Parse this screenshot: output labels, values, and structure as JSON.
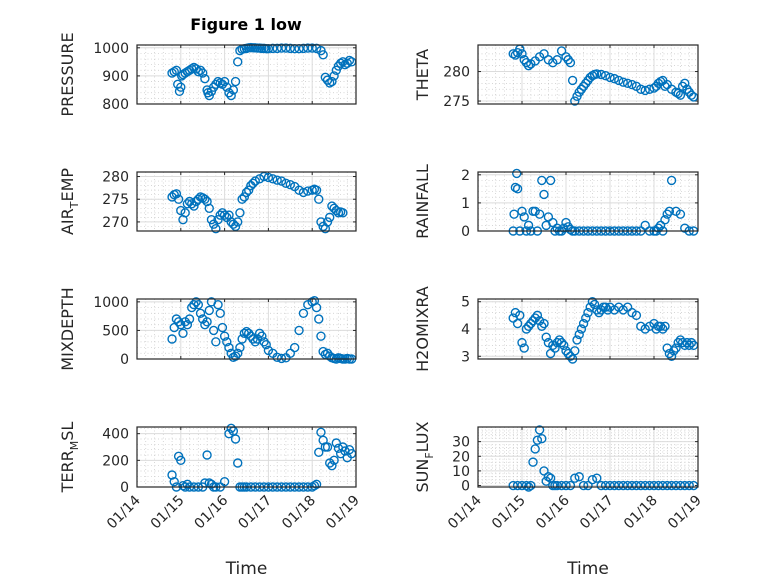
{
  "figure": {
    "title": "Figure 1 low",
    "marker_color": "#0072bd",
    "x_tick_labels": [
      "01/14",
      "01/15",
      "01/16",
      "01/17",
      "01/18",
      "01/19"
    ],
    "x_label": "Time"
  },
  "chart_data": [
    {
      "type": "scatter",
      "title": "Figure 1 low",
      "ylabel": "PRESSURE",
      "ylabel_sub": null,
      "xlabel": "",
      "xlim": [
        0,
        5
      ],
      "ylim": [
        800,
        1010
      ],
      "yticks": [
        800,
        900,
        1000
      ],
      "grid": true,
      "x": [
        0.8,
        0.85,
        0.9,
        0.93,
        0.97,
        1.0,
        1.02,
        1.05,
        1.1,
        1.15,
        1.2,
        1.25,
        1.3,
        1.35,
        1.4,
        1.45,
        1.5,
        1.55,
        1.6,
        1.62,
        1.65,
        1.7,
        1.75,
        1.8,
        1.85,
        1.9,
        1.95,
        2.0,
        2.05,
        2.1,
        2.15,
        2.2,
        2.25,
        2.3,
        2.35,
        2.4,
        2.45,
        2.5,
        2.55,
        2.6,
        2.65,
        2.7,
        2.75,
        2.8,
        2.85,
        2.9,
        2.95,
        3.0,
        3.1,
        3.2,
        3.3,
        3.4,
        3.5,
        3.6,
        3.7,
        3.8,
        3.9,
        4.0,
        4.1,
        4.2,
        4.25,
        4.3,
        4.35,
        4.4,
        4.45,
        4.5,
        4.55,
        4.6,
        4.65,
        4.7,
        4.75,
        4.8,
        4.85,
        4.9
      ],
      "y": [
        910,
        915,
        920,
        870,
        845,
        860,
        900,
        905,
        910,
        915,
        920,
        925,
        930,
        925,
        915,
        920,
        910,
        890,
        850,
        840,
        830,
        845,
        860,
        870,
        880,
        875,
        870,
        880,
        860,
        840,
        830,
        850,
        880,
        950,
        990,
        995,
        997,
        998,
        1000,
        1001,
        1000,
        1000,
        999,
        999,
        998,
        998,
        997,
        997,
        998,
        998,
        999,
        999,
        998,
        997,
        997,
        998,
        999,
        999,
        998,
        990,
        975,
        895,
        885,
        875,
        880,
        900,
        920,
        935,
        945,
        950,
        940,
        945,
        955,
        950
      ]
    },
    {
      "type": "scatter",
      "ylabel": "THETA",
      "ylabel_sub": null,
      "xlabel": "",
      "xlim": [
        0,
        5
      ],
      "ylim": [
        274.5,
        284.5
      ],
      "yticks": [
        275,
        280
      ],
      "grid": true,
      "x": [
        0.8,
        0.85,
        0.9,
        0.95,
        1.0,
        1.05,
        1.1,
        1.15,
        1.2,
        1.3,
        1.4,
        1.5,
        1.6,
        1.7,
        1.8,
        1.9,
        2.0,
        2.05,
        2.1,
        2.15,
        2.2,
        2.25,
        2.3,
        2.35,
        2.4,
        2.45,
        2.5,
        2.55,
        2.6,
        2.65,
        2.7,
        2.8,
        2.9,
        3.0,
        3.1,
        3.2,
        3.3,
        3.4,
        3.5,
        3.6,
        3.7,
        3.8,
        3.9,
        4.0,
        4.05,
        4.1,
        4.15,
        4.2,
        4.25,
        4.3,
        4.4,
        4.5,
        4.55,
        4.6,
        4.65,
        4.7,
        4.75,
        4.8,
        4.85,
        4.9
      ],
      "y": [
        283,
        282.8,
        283.2,
        283.8,
        283,
        282,
        281.5,
        281,
        281.3,
        281.8,
        282.5,
        283,
        282,
        281.5,
        282,
        283.5,
        282.5,
        282,
        281.5,
        278.5,
        275,
        275.8,
        276.5,
        277,
        277.5,
        278,
        278.5,
        279,
        279.3,
        279.5,
        279.6,
        279.5,
        279.3,
        279,
        278.8,
        278.5,
        278.2,
        278,
        277.8,
        277.5,
        277,
        276.8,
        277,
        277.2,
        277.5,
        278,
        278.3,
        278.5,
        277.5,
        277.8,
        277,
        276.5,
        276.3,
        276,
        277.5,
        278,
        277,
        276.5,
        276,
        275.7
      ]
    },
    {
      "type": "scatter",
      "ylabel": "AIR",
      "ylabel_sub": "T",
      "ylabel_rest": "EMP",
      "xlabel": "",
      "xlim": [
        0,
        5
      ],
      "ylim": [
        268,
        281
      ],
      "yticks": [
        270,
        275,
        280
      ],
      "grid": true,
      "x": [
        0.8,
        0.85,
        0.9,
        0.95,
        1.0,
        1.05,
        1.1,
        1.15,
        1.2,
        1.25,
        1.3,
        1.35,
        1.4,
        1.45,
        1.5,
        1.55,
        1.6,
        1.65,
        1.7,
        1.75,
        1.8,
        1.85,
        1.9,
        1.95,
        2.0,
        2.05,
        2.1,
        2.15,
        2.2,
        2.25,
        2.3,
        2.35,
        2.4,
        2.45,
        2.5,
        2.55,
        2.6,
        2.65,
        2.7,
        2.8,
        2.9,
        3.0,
        3.1,
        3.2,
        3.3,
        3.4,
        3.5,
        3.6,
        3.7,
        3.8,
        3.9,
        4.0,
        4.05,
        4.1,
        4.15,
        4.2,
        4.25,
        4.3,
        4.35,
        4.4,
        4.45,
        4.5,
        4.55,
        4.6,
        4.65,
        4.7
      ],
      "y": [
        275.5,
        276,
        276.2,
        275,
        272.5,
        270.5,
        272,
        274,
        274.5,
        274,
        273.5,
        274.5,
        275,
        275.5,
        275.3,
        275,
        274.5,
        273,
        270.5,
        269.5,
        268.5,
        270.5,
        271.5,
        272,
        271.5,
        271,
        271.5,
        270,
        269.5,
        269,
        270,
        272,
        275,
        275.5,
        276.5,
        277,
        278,
        278.5,
        279,
        279.5,
        280,
        279.8,
        279.5,
        279.2,
        279,
        278.5,
        278.2,
        277.8,
        277,
        276.5,
        276.8,
        277,
        277.2,
        277,
        275,
        270,
        269,
        268.5,
        270,
        271,
        273.5,
        273,
        272.5,
        272,
        272.2,
        272
      ]
    },
    {
      "type": "scatter",
      "ylabel": "RAINFALL",
      "ylabel_sub": null,
      "xlabel": "",
      "xlim": [
        0,
        5
      ],
      "ylim": [
        0,
        2.1
      ],
      "yticks": [
        0,
        1,
        2
      ],
      "grid": true,
      "x": [
        0.8,
        0.82,
        0.85,
        0.88,
        0.9,
        0.95,
        1.0,
        1.05,
        1.1,
        1.15,
        1.2,
        1.25,
        1.3,
        1.35,
        1.4,
        1.45,
        1.5,
        1.55,
        1.6,
        1.65,
        1.7,
        1.75,
        1.8,
        1.85,
        1.9,
        1.95,
        2.0,
        2.05,
        2.1,
        2.15,
        2.2,
        2.3,
        2.4,
        2.5,
        2.6,
        2.7,
        2.8,
        2.9,
        3.0,
        3.1,
        3.2,
        3.3,
        3.4,
        3.5,
        3.6,
        3.7,
        3.8,
        3.9,
        4.0,
        4.05,
        4.1,
        4.15,
        4.2,
        4.25,
        4.3,
        4.35,
        4.4,
        4.5,
        4.6,
        4.7,
        4.8,
        4.9
      ],
      "y": [
        0,
        0.6,
        1.55,
        2.05,
        1.5,
        0,
        0.7,
        0.5,
        0,
        0.2,
        0,
        0.7,
        0.7,
        0,
        0.6,
        1.8,
        1.3,
        0.2,
        0.5,
        1.8,
        0.3,
        0,
        0.1,
        0,
        0,
        0.1,
        0.3,
        0.15,
        0.05,
        0,
        0,
        0,
        0,
        0,
        0,
        0,
        0,
        0,
        0,
        0,
        0,
        0,
        0,
        0,
        0,
        0,
        0.2,
        0,
        0,
        0,
        0.1,
        0.2,
        0,
        0.4,
        0.6,
        0.7,
        1.8,
        0.7,
        0.6,
        0.1,
        0,
        0
      ]
    },
    {
      "type": "scatter",
      "ylabel": "MIXDEPTH",
      "ylabel_sub": null,
      "xlabel": "",
      "xlim": [
        0,
        5
      ],
      "ylim": [
        0,
        1050
      ],
      "yticks": [
        0,
        500,
        1000
      ],
      "grid": true,
      "x": [
        0.8,
        0.85,
        0.9,
        0.95,
        1.0,
        1.05,
        1.1,
        1.15,
        1.2,
        1.25,
        1.3,
        1.35,
        1.4,
        1.45,
        1.5,
        1.55,
        1.6,
        1.65,
        1.7,
        1.75,
        1.8,
        1.85,
        1.9,
        1.95,
        2.0,
        2.05,
        2.1,
        2.15,
        2.2,
        2.25,
        2.3,
        2.35,
        2.4,
        2.45,
        2.5,
        2.55,
        2.6,
        2.65,
        2.7,
        2.75,
        2.8,
        2.85,
        2.9,
        2.95,
        3.0,
        3.1,
        3.2,
        3.3,
        3.4,
        3.5,
        3.6,
        3.7,
        3.8,
        3.9,
        4.0,
        4.05,
        4.1,
        4.15,
        4.2,
        4.25,
        4.3,
        4.35,
        4.4,
        4.45,
        4.5,
        4.55,
        4.6,
        4.65,
        4.7,
        4.75,
        4.8,
        4.85,
        4.9
      ],
      "y": [
        350,
        550,
        700,
        650,
        600,
        450,
        650,
        600,
        700,
        900,
        950,
        1000,
        950,
        800,
        700,
        600,
        650,
        850,
        1000,
        500,
        300,
        950,
        800,
        550,
        400,
        300,
        200,
        100,
        30,
        50,
        100,
        200,
        350,
        450,
        480,
        450,
        400,
        350,
        300,
        350,
        450,
        400,
        300,
        250,
        150,
        100,
        30,
        10,
        20,
        100,
        200,
        500,
        800,
        950,
        1000,
        1020,
        900,
        700,
        400,
        130,
        80,
        100,
        50,
        20,
        10,
        0,
        20,
        10,
        0,
        0,
        10,
        0,
        0
      ]
    },
    {
      "type": "scatter",
      "ylabel": "H2OMIXRA",
      "ylabel_sub": null,
      "xlabel": "",
      "xlim": [
        0,
        5
      ],
      "ylim": [
        2.9,
        5.1
      ],
      "yticks": [
        3,
        4,
        5
      ],
      "grid": true,
      "x": [
        0.8,
        0.85,
        0.9,
        0.95,
        1.0,
        1.05,
        1.1,
        1.15,
        1.2,
        1.25,
        1.3,
        1.35,
        1.4,
        1.45,
        1.5,
        1.55,
        1.6,
        1.65,
        1.7,
        1.75,
        1.8,
        1.85,
        1.9,
        1.95,
        2.0,
        2.05,
        2.1,
        2.15,
        2.2,
        2.25,
        2.3,
        2.35,
        2.4,
        2.45,
        2.5,
        2.55,
        2.6,
        2.65,
        2.7,
        2.75,
        2.8,
        2.85,
        2.9,
        2.95,
        3.0,
        3.1,
        3.2,
        3.3,
        3.4,
        3.5,
        3.6,
        3.7,
        3.8,
        3.9,
        4.0,
        4.05,
        4.1,
        4.15,
        4.2,
        4.25,
        4.3,
        4.35,
        4.4,
        4.45,
        4.5,
        4.55,
        4.6,
        4.65,
        4.7,
        4.75,
        4.8,
        4.85,
        4.9
      ],
      "y": [
        4.4,
        4.6,
        4.2,
        4.5,
        3.5,
        3.3,
        4.0,
        4.1,
        4.2,
        4.3,
        4.4,
        4.5,
        4.3,
        4.1,
        4.2,
        3.7,
        3.5,
        3.1,
        3.4,
        3.3,
        3.5,
        3.6,
        3.5,
        3.4,
        3.2,
        3.1,
        3.0,
        2.9,
        3.2,
        3.6,
        3.8,
        4.0,
        4.2,
        4.4,
        4.6,
        4.8,
        5.0,
        4.9,
        4.7,
        4.6,
        4.7,
        4.8,
        4.8,
        4.7,
        4.8,
        4.7,
        4.8,
        4.7,
        4.8,
        4.6,
        4.5,
        4.1,
        4.0,
        4.1,
        4.2,
        4.0,
        4.1,
        4.1,
        4.0,
        4.1,
        3.3,
        3.1,
        3.0,
        3.2,
        3.3,
        3.5,
        3.6,
        3.5,
        3.4,
        3.5,
        3.4,
        3.5,
        3.4
      ]
    },
    {
      "type": "scatter",
      "ylabel": "TERR",
      "ylabel_sub": "M",
      "ylabel_rest": "SL",
      "xlabel": "Time",
      "xlim": [
        0,
        5
      ],
      "ylim": [
        0,
        450
      ],
      "yticks": [
        0,
        200,
        400
      ],
      "grid": true,
      "x": [
        0.8,
        0.85,
        0.9,
        0.95,
        1.0,
        1.05,
        1.1,
        1.15,
        1.2,
        1.3,
        1.4,
        1.5,
        1.55,
        1.6,
        1.65,
        1.7,
        1.75,
        1.8,
        1.9,
        2.0,
        2.1,
        2.15,
        2.2,
        2.25,
        2.3,
        2.35,
        2.4,
        2.45,
        2.5,
        2.6,
        2.7,
        2.8,
        2.9,
        3.0,
        3.1,
        3.2,
        3.3,
        3.4,
        3.5,
        3.6,
        3.7,
        3.8,
        3.9,
        4.0,
        4.05,
        4.1,
        4.15,
        4.2,
        4.25,
        4.3,
        4.35,
        4.4,
        4.45,
        4.5,
        4.55,
        4.6,
        4.65,
        4.7,
        4.75,
        4.8,
        4.85,
        4.9
      ],
      "y": [
        90,
        40,
        0,
        230,
        200,
        10,
        0,
        20,
        0,
        0,
        0,
        0,
        30,
        240,
        30,
        20,
        0,
        0,
        0,
        40,
        400,
        440,
        420,
        360,
        180,
        0,
        0,
        0,
        0,
        0,
        0,
        0,
        0,
        0,
        0,
        0,
        0,
        0,
        0,
        0,
        0,
        0,
        0,
        0,
        10,
        20,
        260,
        410,
        350,
        300,
        300,
        180,
        160,
        200,
        330,
        290,
        250,
        300,
        270,
        220,
        280,
        250
      ]
    },
    {
      "type": "scatter",
      "ylabel": "SUN",
      "ylabel_sub": "F",
      "ylabel_rest": "LUX",
      "xlabel": "Time",
      "xlim": [
        0,
        5
      ],
      "ylim": [
        -1,
        40
      ],
      "yticks": [
        0,
        10,
        20,
        30
      ],
      "grid": true,
      "x": [
        0.8,
        0.9,
        1.0,
        1.1,
        1.15,
        1.2,
        1.25,
        1.3,
        1.35,
        1.4,
        1.45,
        1.5,
        1.55,
        1.6,
        1.65,
        1.7,
        1.75,
        1.8,
        1.9,
        2.0,
        2.1,
        2.2,
        2.3,
        2.4,
        2.5,
        2.6,
        2.7,
        2.8,
        2.9,
        3.0,
        3.1,
        3.2,
        3.3,
        3.4,
        3.5,
        3.6,
        3.7,
        3.8,
        3.9,
        4.0,
        4.1,
        4.2,
        4.3,
        4.4,
        4.5,
        4.6,
        4.7,
        4.8,
        4.9
      ],
      "y": [
        0,
        0,
        0,
        0,
        -1,
        0,
        16,
        25,
        31,
        38,
        32,
        10,
        3,
        6,
        5,
        0,
        0,
        0,
        0,
        0,
        0,
        5,
        6,
        0,
        0,
        4,
        5,
        0,
        0,
        0,
        0,
        0,
        0,
        0,
        0,
        0,
        0,
        0,
        0,
        0,
        0,
        0,
        0,
        0,
        0,
        0,
        0,
        0,
        0
      ]
    }
  ]
}
